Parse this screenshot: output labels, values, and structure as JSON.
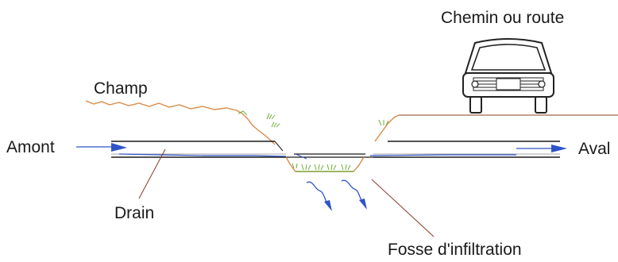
{
  "labels": {
    "chemin": "Chemin ou route",
    "champ": "Champ",
    "amont": "Amont",
    "aval": "Aval",
    "drain": "Drain",
    "fosse": "Fosse d'infiltration"
  },
  "icons": {
    "car": "car-icon",
    "grass": "grass-tuft-icon",
    "flow_arrow": "arrow-right-icon",
    "infiltration": "infiltration-arrow-icon"
  },
  "colors": {
    "line": "#1a1a1a",
    "ground": "#d98c4a",
    "grass": "#6fae3a",
    "water": "#2f54c8",
    "leader": "#8b3a2a",
    "car_stroke": "#222222"
  }
}
